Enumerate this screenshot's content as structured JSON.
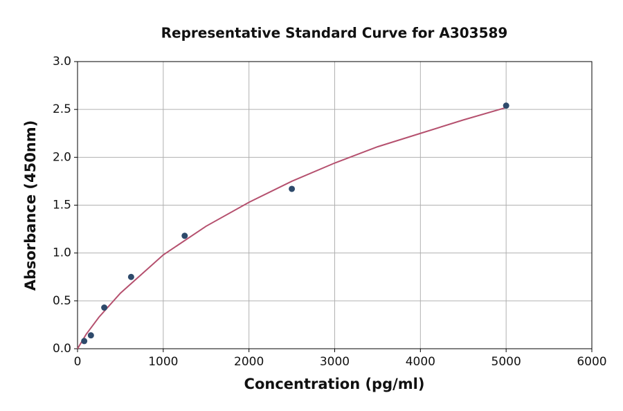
{
  "chart_data": {
    "type": "scatter",
    "title": "Representative Standard Curve for A303589",
    "x_label": "Concentration (pg/ml)",
    "y_label": "Absorbance (450nm)",
    "series": [
      {
        "type": "scatter",
        "color": "#2e4a6b",
        "x": [
          78,
          156,
          312,
          625,
          1250,
          2500,
          5000
        ],
        "values": [
          0.08,
          0.14,
          0.43,
          0.75,
          1.18,
          1.67,
          2.54
        ]
      },
      {
        "type": "line",
        "color": "#b5506e",
        "x": [
          0,
          100,
          250,
          500,
          1000,
          1500,
          2000,
          2500,
          3000,
          3500,
          4000,
          4500,
          5000
        ],
        "values": [
          0,
          0.15,
          0.33,
          0.58,
          0.98,
          1.28,
          1.53,
          1.75,
          1.94,
          2.11,
          2.25,
          2.39,
          2.52
        ]
      }
    ],
    "xlim": [
      0,
      6000
    ],
    "xticks": [
      0,
      1000,
      2000,
      3000,
      4000,
      5000,
      6000
    ],
    "ylim": [
      0,
      3
    ],
    "yticks": [
      {
        "value": 0,
        "label": "0.0"
      },
      {
        "value": 0.5,
        "label": "0.5"
      },
      {
        "value": 1,
        "label": "1.0"
      },
      {
        "value": 1.5,
        "label": "1.5"
      },
      {
        "value": 2,
        "label": "2.0"
      },
      {
        "value": 2.5,
        "label": "2.5"
      },
      {
        "value": 3,
        "label": "3.0"
      }
    ],
    "grid": true
  }
}
